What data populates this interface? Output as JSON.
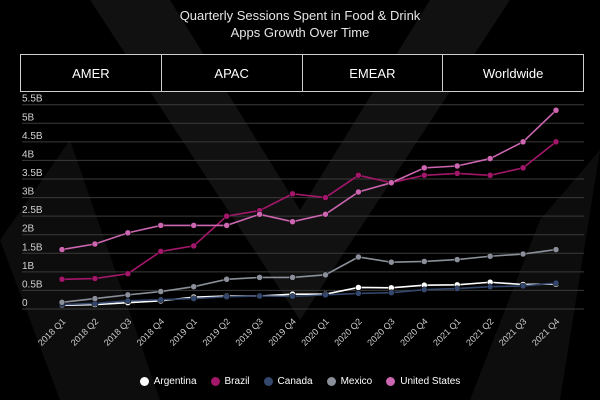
{
  "chart_data": {
    "type": "line",
    "title_line1": "Quarterly Sessions Spent in Food & Drink",
    "title_line2": "Apps Growth Over Time",
    "categories": [
      "2018 Q1",
      "2018 Q2",
      "2018 Q3",
      "2018 Q4",
      "2019 Q1",
      "2019 Q2",
      "2019 Q3",
      "2019 Q4",
      "2020 Q1",
      "2020 Q2",
      "2020 Q3",
      "2020 Q4",
      "2021 Q1",
      "2021 Q2",
      "2021 Q3",
      "2021 Q4"
    ],
    "y_ticks": [
      0,
      0.5,
      1,
      1.5,
      2,
      2.5,
      3,
      3.5,
      4,
      4.5,
      5,
      5.5
    ],
    "y_tick_labels": [
      "0",
      "0.5B",
      "1B",
      "1.5B",
      "2B",
      "2.5B",
      "3B",
      "3.5B",
      "4B",
      "4.5B",
      "5B",
      "5.5B"
    ],
    "ylim": [
      0,
      5.6
    ],
    "grid": true,
    "legend_position": "bottom",
    "series": [
      {
        "name": "Argentina",
        "color": "#ffffff",
        "values": [
          0.1,
          0.12,
          0.17,
          0.22,
          0.32,
          0.35,
          0.35,
          0.4,
          0.4,
          0.58,
          0.57,
          0.64,
          0.65,
          0.72,
          0.66,
          0.67
        ]
      },
      {
        "name": "Brazil",
        "color": "#a3176a",
        "values": [
          0.8,
          0.82,
          0.95,
          1.55,
          1.7,
          2.5,
          2.65,
          3.1,
          3.0,
          3.6,
          3.4,
          3.6,
          3.65,
          3.6,
          3.8,
          4.5
        ]
      },
      {
        "name": "Canada",
        "color": "#34476d",
        "values": [
          0.12,
          0.15,
          0.22,
          0.25,
          0.28,
          0.33,
          0.35,
          0.34,
          0.38,
          0.42,
          0.44,
          0.52,
          0.55,
          0.6,
          0.62,
          0.7
        ]
      },
      {
        "name": "Mexico",
        "color": "#8a8f99",
        "values": [
          0.18,
          0.28,
          0.38,
          0.47,
          0.6,
          0.8,
          0.85,
          0.85,
          0.92,
          1.4,
          1.26,
          1.28,
          1.33,
          1.42,
          1.48,
          1.6
        ]
      },
      {
        "name": "United States",
        "color": "#cc66b0",
        "values": [
          1.6,
          1.75,
          2.05,
          2.25,
          2.25,
          2.25,
          2.55,
          2.35,
          2.55,
          3.15,
          3.4,
          3.8,
          3.85,
          4.05,
          4.5,
          5.35
        ]
      }
    ]
  },
  "tabs": [
    {
      "label": "AMER"
    },
    {
      "label": "APAC"
    },
    {
      "label": "EMEAR"
    },
    {
      "label": "Worldwide"
    }
  ]
}
